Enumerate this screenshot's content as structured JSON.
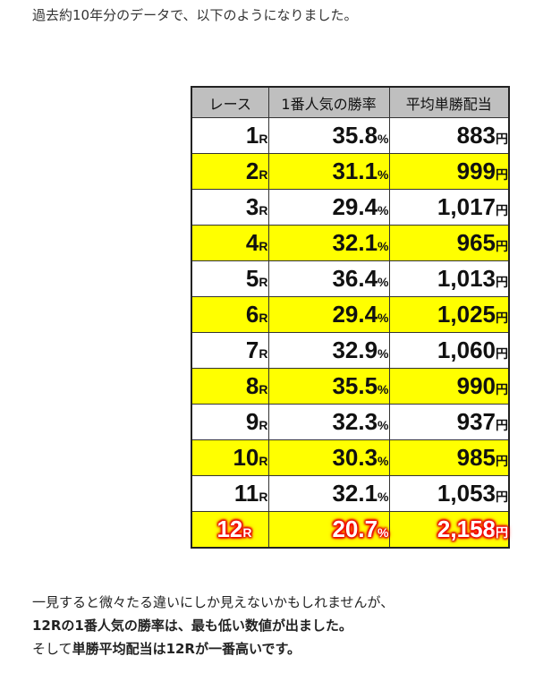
{
  "intro": "過去約10年分のデータで、以下のようになりました。",
  "table": {
    "headers": [
      "レース",
      "1番人気の勝率",
      "平均単勝配当"
    ],
    "race_unit": "R",
    "rate_unit": "%",
    "payout_unit": "円",
    "rows": [
      {
        "race": "1",
        "rate": "35.8",
        "payout": "883"
      },
      {
        "race": "2",
        "rate": "31.1",
        "payout": "999"
      },
      {
        "race": "3",
        "rate": "29.4",
        "payout": "1,017"
      },
      {
        "race": "4",
        "rate": "32.1",
        "payout": "965"
      },
      {
        "race": "5",
        "rate": "36.4",
        "payout": "1,013"
      },
      {
        "race": "6",
        "rate": "29.4",
        "payout": "1,025"
      },
      {
        "race": "7",
        "rate": "32.9",
        "payout": "1,060"
      },
      {
        "race": "8",
        "rate": "35.5",
        "payout": "990"
      },
      {
        "race": "9",
        "rate": "32.3",
        "payout": "937"
      },
      {
        "race": "10",
        "rate": "30.3",
        "payout": "985"
      },
      {
        "race": "11",
        "rate": "32.1",
        "payout": "1,053"
      },
      {
        "race": "12",
        "rate": "20.7",
        "payout": "2,158"
      }
    ]
  },
  "outro": {
    "line1": "一見すると微々たる違いにしか見えないかもしれませんが、",
    "line2": "12Rの1番人気の勝率は、最も低い数値が出ました。",
    "line3_prefix": "そして",
    "line3_bold": "単勝平均配当は12Rが一番高いです。"
  }
}
